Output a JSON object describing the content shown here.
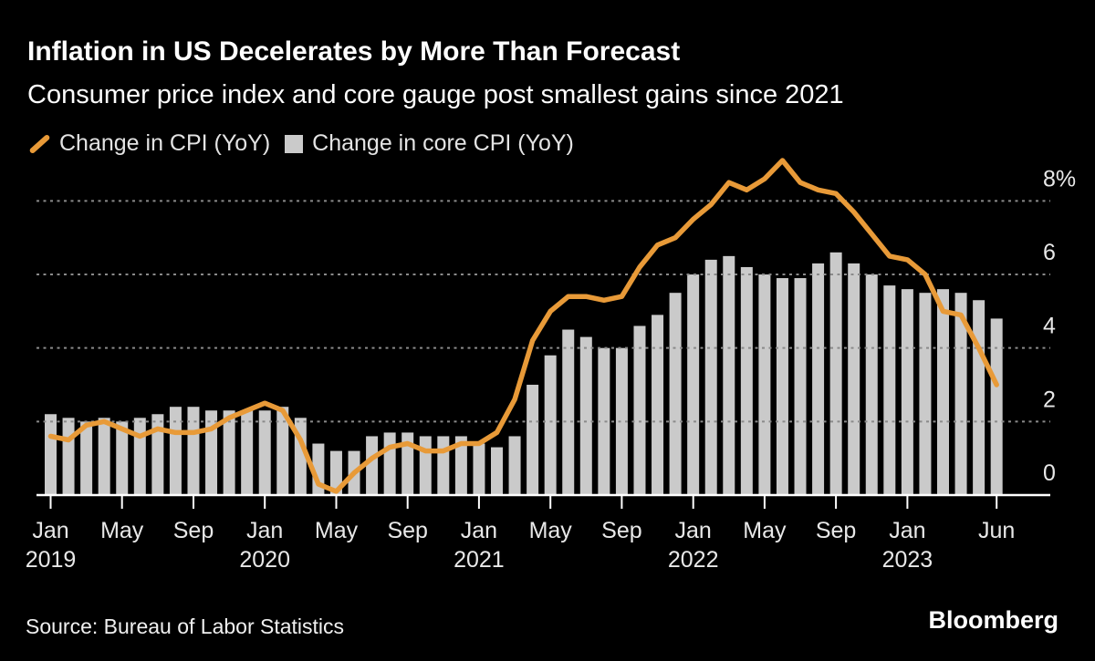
{
  "footer": {
    "source": "Source: Bureau of Labor Statistics",
    "brand": "Bloomberg"
  },
  "chart_data": {
    "type": "combo",
    "title": "Inflation in US Decelerates by More Than Forecast",
    "subtitle": "Consumer price index and core gauge post smallest gains since 2021",
    "x": [
      "Jan 2019",
      "Feb 2019",
      "Mar 2019",
      "Apr 2019",
      "May 2019",
      "Jun 2019",
      "Jul 2019",
      "Aug 2019",
      "Sep 2019",
      "Oct 2019",
      "Nov 2019",
      "Dec 2019",
      "Jan 2020",
      "Feb 2020",
      "Mar 2020",
      "Apr 2020",
      "May 2020",
      "Jun 2020",
      "Jul 2020",
      "Aug 2020",
      "Sep 2020",
      "Oct 2020",
      "Nov 2020",
      "Dec 2020",
      "Jan 2021",
      "Feb 2021",
      "Mar 2021",
      "Apr 2021",
      "May 2021",
      "Jun 2021",
      "Jul 2021",
      "Aug 2021",
      "Sep 2021",
      "Oct 2021",
      "Nov 2021",
      "Dec 2021",
      "Jan 2022",
      "Feb 2022",
      "Mar 2022",
      "Apr 2022",
      "May 2022",
      "Jun 2022",
      "Jul 2022",
      "Aug 2022",
      "Sep 2022",
      "Oct 2022",
      "Nov 2022",
      "Dec 2022",
      "Jan 2023",
      "Feb 2023",
      "Mar 2023",
      "Apr 2023",
      "May 2023",
      "Jun 2023"
    ],
    "series": [
      {
        "name": "Change in CPI (YoY)",
        "type": "line",
        "color": "#E89A38",
        "values": [
          1.6,
          1.5,
          1.9,
          2.0,
          1.8,
          1.6,
          1.8,
          1.7,
          1.7,
          1.8,
          2.1,
          2.3,
          2.5,
          2.3,
          1.5,
          0.3,
          0.1,
          0.6,
          1.0,
          1.3,
          1.4,
          1.2,
          1.2,
          1.4,
          1.4,
          1.7,
          2.6,
          4.2,
          5.0,
          5.4,
          5.4,
          5.3,
          5.4,
          6.2,
          6.8,
          7.0,
          7.5,
          7.9,
          8.5,
          8.3,
          8.6,
          9.1,
          8.5,
          8.3,
          8.2,
          7.7,
          7.1,
          6.5,
          6.4,
          6.0,
          5.0,
          4.9,
          4.0,
          3.0
        ]
      },
      {
        "name": "Change in core CPI (YoY)",
        "type": "bar",
        "color": "#CACACA",
        "values": [
          2.2,
          2.1,
          2.0,
          2.1,
          2.0,
          2.1,
          2.2,
          2.4,
          2.4,
          2.3,
          2.3,
          2.3,
          2.3,
          2.4,
          2.1,
          1.4,
          1.2,
          1.2,
          1.6,
          1.7,
          1.7,
          1.6,
          1.6,
          1.6,
          1.4,
          1.3,
          1.6,
          3.0,
          3.8,
          4.5,
          4.3,
          4.0,
          4.0,
          4.6,
          4.9,
          5.5,
          6.0,
          6.4,
          6.5,
          6.2,
          6.0,
          5.9,
          5.9,
          6.3,
          6.6,
          6.3,
          6.0,
          5.7,
          5.6,
          5.5,
          5.6,
          5.5,
          5.3,
          4.8
        ]
      }
    ],
    "ylim": [
      0,
      9.6
    ],
    "yticks": [
      {
        "value": 0,
        "label": "0"
      },
      {
        "value": 2,
        "label": "2"
      },
      {
        "value": 4,
        "label": "4"
      },
      {
        "value": 6,
        "label": "6"
      },
      {
        "value": 8,
        "label": "8%"
      }
    ],
    "xticks": [
      {
        "index": 0,
        "line1": "Jan",
        "line2": "2019"
      },
      {
        "index": 4,
        "line1": "May",
        "line2": ""
      },
      {
        "index": 8,
        "line1": "Sep",
        "line2": ""
      },
      {
        "index": 12,
        "line1": "Jan",
        "line2": "2020"
      },
      {
        "index": 16,
        "line1": "May",
        "line2": ""
      },
      {
        "index": 20,
        "line1": "Sep",
        "line2": ""
      },
      {
        "index": 24,
        "line1": "Jan",
        "line2": "2021"
      },
      {
        "index": 28,
        "line1": "May",
        "line2": ""
      },
      {
        "index": 32,
        "line1": "Sep",
        "line2": ""
      },
      {
        "index": 36,
        "line1": "Jan",
        "line2": "2022"
      },
      {
        "index": 40,
        "line1": "May",
        "line2": ""
      },
      {
        "index": 44,
        "line1": "Sep",
        "line2": ""
      },
      {
        "index": 48,
        "line1": "Jan",
        "line2": "2023"
      },
      {
        "index": 53,
        "line1": "Jun",
        "line2": ""
      }
    ],
    "grid": "horizontal-dotted",
    "grid_color": "#8A8A8A",
    "axis_color": "#FFFFFF",
    "label_color": "#E8E8E8",
    "y_axis_side": "right",
    "legend_position": "top-left",
    "background_color": "#000000"
  }
}
